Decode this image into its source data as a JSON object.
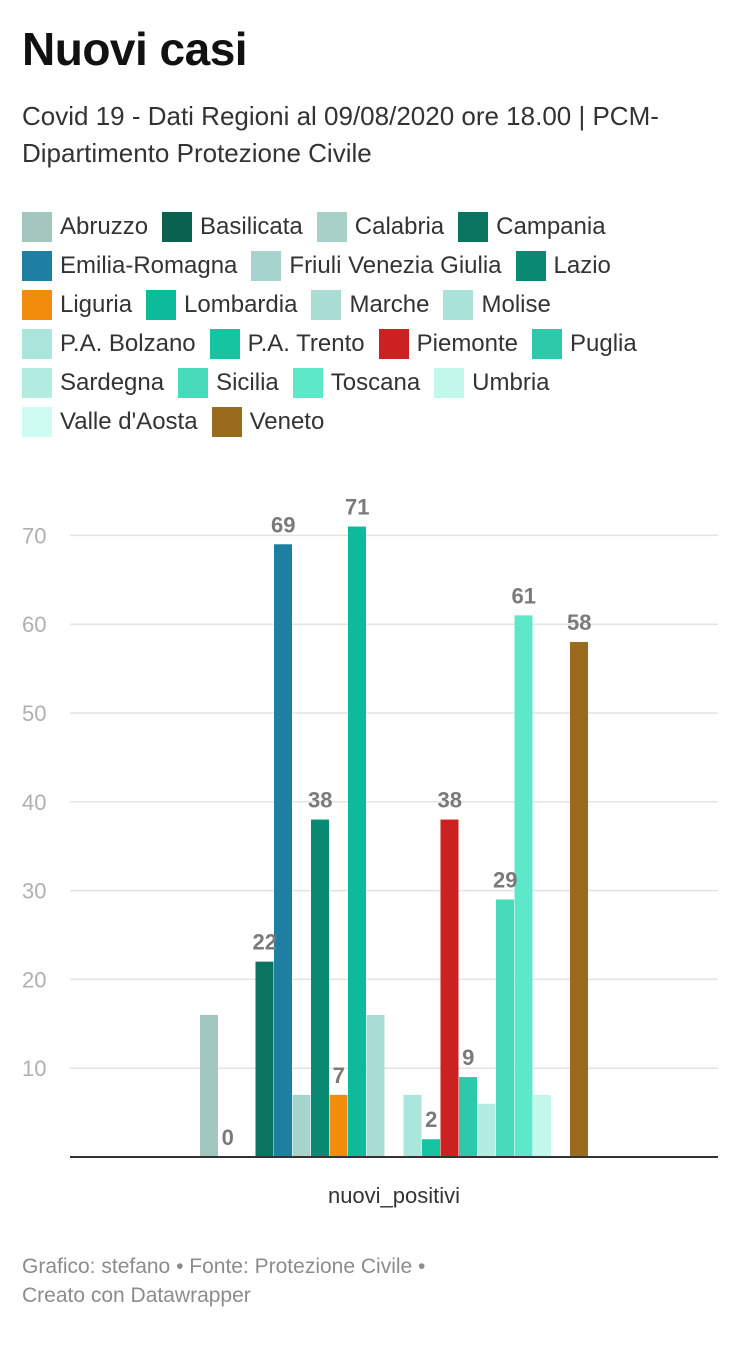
{
  "header": {
    "title": "Nuovi casi",
    "subtitle": "Covid 19 - Dati Regioni al 09/08/2020 ore 18.00 | PCM- Dipartimento Protezione Civile"
  },
  "footer": {
    "line1": "Grafico: stefano • Fonte: Protezione Civile •",
    "line2": "Creato con Datawrapper"
  },
  "chart_data": {
    "type": "bar",
    "title": "Nuovi casi",
    "subtitle": "Covid 19 - Dati Regioni al 09/08/2020 ore 18.00 | PCM- Dipartimento Protezione Civile",
    "categories": [
      "nuovi_positivi"
    ],
    "xlabel": "nuovi_positivi",
    "ylabel": "",
    "ylim": [
      0,
      75
    ],
    "yticks": [
      10,
      20,
      30,
      40,
      50,
      60,
      70
    ],
    "grid": true,
    "legend_position": "top",
    "series": [
      {
        "name": "Abruzzo",
        "value": 16,
        "color": "#a3c7bf",
        "label": ""
      },
      {
        "name": "Basilicata",
        "value": 0,
        "color": "#0a6150",
        "label": "0"
      },
      {
        "name": "Calabria",
        "value": 0,
        "color": "#a9d0c8",
        "label": ""
      },
      {
        "name": "Campania",
        "value": 22,
        "color": "#0b745e",
        "label": "22"
      },
      {
        "name": "Emilia-Romagna",
        "value": 69,
        "color": "#1e7fa3",
        "label": "69"
      },
      {
        "name": "Friuli Venezia Giulia",
        "value": 7,
        "color": "#a6d3cb",
        "label": ""
      },
      {
        "name": "Lazio",
        "value": 38,
        "color": "#0b8a73",
        "label": "38"
      },
      {
        "name": "Liguria",
        "value": 7,
        "color": "#f28c0c",
        "label": "7"
      },
      {
        "name": "Lombardia",
        "value": 71,
        "color": "#0dbb9a",
        "label": "71"
      },
      {
        "name": "Marche",
        "value": 16,
        "color": "#a9ddd4",
        "label": ""
      },
      {
        "name": "Molise",
        "value": 0,
        "color": "#a8e2d8",
        "label": ""
      },
      {
        "name": "P.A. Bolzano",
        "value": 7,
        "color": "#aae6dc",
        "label": ""
      },
      {
        "name": "P.A. Trento",
        "value": 2,
        "color": "#16c4a2",
        "label": "2"
      },
      {
        "name": "Piemonte",
        "value": 38,
        "color": "#cc2121",
        "label": "38"
      },
      {
        "name": "Puglia",
        "value": 9,
        "color": "#2ec9aa",
        "label": "9"
      },
      {
        "name": "Sardegna",
        "value": 6,
        "color": "#b3ede2",
        "label": ""
      },
      {
        "name": "Sicilia",
        "value": 29,
        "color": "#47dbbc",
        "label": "29"
      },
      {
        "name": "Toscana",
        "value": 61,
        "color": "#5de8c9",
        "label": "61"
      },
      {
        "name": "Umbria",
        "value": 7,
        "color": "#c2f7ec",
        "label": ""
      },
      {
        "name": "Valle d'Aosta",
        "value": 0,
        "color": "#cffcf2",
        "label": ""
      },
      {
        "name": "Veneto",
        "value": 58,
        "color": "#9a6a1f",
        "label": "58"
      }
    ]
  }
}
